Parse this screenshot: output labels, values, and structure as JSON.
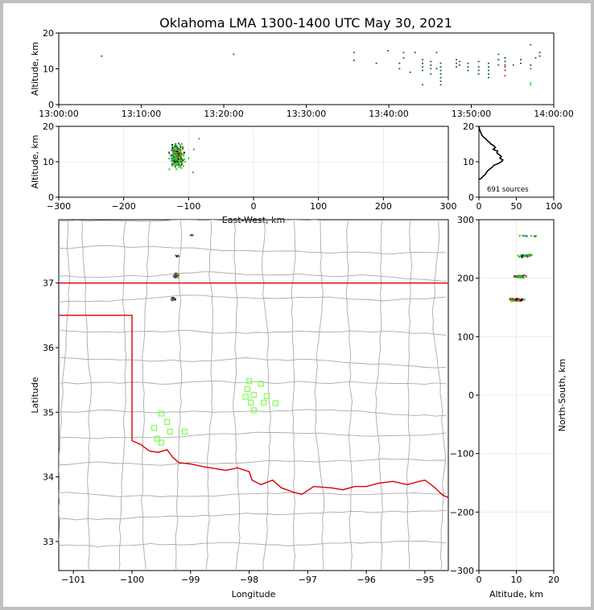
{
  "title": "Oklahoma LMA 1300-1400 UTC May 30, 2021",
  "colors": {
    "early": "#1f3fcc",
    "mid": "#22cc22",
    "late": "#dd1111",
    "dark": "#0a5a4a",
    "border": "#dd0000",
    "county": "#aaaaaa",
    "station": "#7dff4a"
  },
  "chart_data": [
    {
      "id": "time-height",
      "type": "scatter",
      "xlabel": "",
      "ylabel": "Altitude, km",
      "xlim": [
        0,
        60
      ],
      "ylim": [
        0,
        20
      ],
      "xticks": [
        0,
        10,
        20,
        30,
        40,
        50,
        60
      ],
      "xtick_labels": [
        "13:00:00",
        "13:10:00",
        "13:20:00",
        "13:30:00",
        "13:40:00",
        "13:50:00",
        "14:00:00"
      ],
      "yticks": [
        0,
        10,
        20
      ],
      "ytick_labels": [
        "0",
        "10",
        "20"
      ],
      "x_units": "minutes after 13:00 UTC"
    },
    {
      "id": "ew-height",
      "type": "scatter",
      "xlabel": "East-West, km",
      "ylabel": "Altitude, km",
      "xlim": [
        -300,
        300
      ],
      "ylim": [
        0,
        20
      ],
      "xticks": [
        -300,
        -200,
        -100,
        0,
        100,
        200,
        300
      ],
      "xtick_labels": [
        "−300",
        "−200",
        "−100",
        "0",
        "100",
        "200",
        "300"
      ],
      "yticks": [
        0,
        10,
        20
      ],
      "ytick_labels": [
        "0",
        "10",
        "20"
      ]
    },
    {
      "id": "altitude-histogram",
      "type": "line",
      "xlabel": "",
      "ylabel": "",
      "xlim": [
        0,
        100
      ],
      "ylim": [
        0,
        20
      ],
      "xticks": [
        0,
        50,
        100
      ],
      "xtick_labels": [
        "0",
        "50",
        "100"
      ],
      "yticks": [
        0,
        10,
        20
      ],
      "ytick_labels": [
        "0",
        "10",
        "20"
      ],
      "annotation": "691 sources",
      "profile": [
        [
          0,
          20
        ],
        [
          1,
          19
        ],
        [
          3,
          18
        ],
        [
          4,
          17.5
        ],
        [
          6,
          17
        ],
        [
          9,
          16.5
        ],
        [
          11,
          16
        ],
        [
          14,
          15.5
        ],
        [
          16,
          15
        ],
        [
          20,
          14.5
        ],
        [
          22,
          14
        ],
        [
          19,
          13.5
        ],
        [
          25,
          13
        ],
        [
          24,
          12.5
        ],
        [
          27,
          12
        ],
        [
          30,
          11.5
        ],
        [
          28,
          11
        ],
        [
          32,
          10.5
        ],
        [
          30,
          10
        ],
        [
          26,
          9.5
        ],
        [
          20,
          9
        ],
        [
          18,
          8.5
        ],
        [
          15,
          8
        ],
        [
          12,
          7.5
        ],
        [
          10,
          7
        ],
        [
          9,
          6.5
        ],
        [
          6,
          6
        ],
        [
          4,
          5.5
        ],
        [
          2,
          5.2
        ],
        [
          0,
          5
        ]
      ]
    },
    {
      "id": "plan-view",
      "type": "scatter",
      "xlabel": "Longitude",
      "ylabel": "Latitude",
      "xlim": [
        -101.25,
        -94.6
      ],
      "ylim": [
        32.55,
        37.98
      ],
      "xticks": [
        -101,
        -100,
        -99,
        -98,
        -97,
        -96,
        -95
      ],
      "xtick_labels": [
        "−101",
        "−100",
        "−99",
        "−98",
        "−97",
        "−96",
        "−95"
      ],
      "yticks": [
        33,
        34,
        35,
        36,
        37
      ],
      "ytick_labels": [
        "33",
        "34",
        "35",
        "36",
        "37"
      ],
      "stations": [
        [
          -99.5,
          34.98
        ],
        [
          -99.4,
          34.85
        ],
        [
          -99.62,
          34.76
        ],
        [
          -99.35,
          34.7
        ],
        [
          -99.1,
          34.7
        ],
        [
          -99.57,
          34.59
        ],
        [
          -99.5,
          34.53
        ],
        [
          -98.0,
          35.48
        ],
        [
          -97.8,
          35.44
        ],
        [
          -98.03,
          35.36
        ],
        [
          -97.92,
          35.27
        ],
        [
          -98.06,
          35.24
        ],
        [
          -97.7,
          35.25
        ],
        [
          -97.97,
          35.15
        ],
        [
          -97.75,
          35.15
        ],
        [
          -97.55,
          35.14
        ],
        [
          -97.92,
          35.03
        ]
      ]
    },
    {
      "id": "ns-height",
      "type": "scatter",
      "xlabel": "Altitude, km",
      "ylabel": "North-South, km",
      "xlim": [
        0,
        20
      ],
      "ylim": [
        -300,
        300
      ],
      "xticks": [
        0,
        10,
        20
      ],
      "xtick_labels": [
        "0",
        "10",
        "20"
      ],
      "yticks": [
        -300,
        -200,
        -100,
        0,
        100,
        200,
        300
      ],
      "ytick_labels": [
        "−300",
        "−200",
        "−100",
        "0",
        "100",
        "200",
        "300"
      ]
    }
  ]
}
